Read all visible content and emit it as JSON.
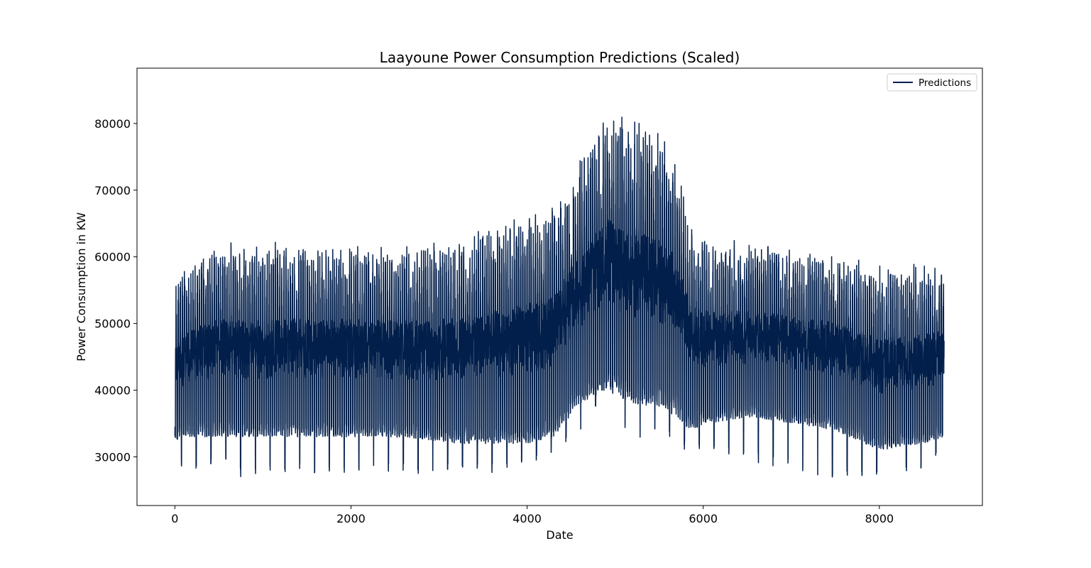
{
  "chart_data": {
    "type": "line",
    "title": "Laayoune Power Consumption Predictions (Scaled)",
    "xlabel": "Date",
    "ylabel": "Power Consumption in KW",
    "xlim": [
      -430,
      9170
    ],
    "ylim": [
      22700,
      88300
    ],
    "xticks": [
      0,
      2000,
      4000,
      6000,
      8000
    ],
    "yticks": [
      30000,
      40000,
      50000,
      60000,
      70000,
      80000
    ],
    "legend_position": "top-right",
    "grid": false,
    "line_color": "#021f4b",
    "series": [
      {
        "name": "Predictions",
        "n_points": 8736,
        "cycle_length": 24,
        "envelope": {
          "x": [
            0,
            200,
            500,
            800,
            1200,
            1600,
            2000,
            2400,
            2800,
            3200,
            3600,
            4000,
            4300,
            4600,
            4900,
            5200,
            5500,
            5700,
            5850,
            6100,
            6500,
            7000,
            7500,
            8000,
            8500,
            8735
          ],
          "high": [
            57000,
            60000,
            63000,
            62000,
            62500,
            62500,
            62500,
            62000,
            62500,
            63500,
            65000,
            67000,
            68000,
            76000,
            83000,
            81000,
            80000,
            76000,
            65000,
            63000,
            62500,
            62000,
            61000,
            59000,
            59500,
            59500
          ],
          "low": [
            32500,
            33000,
            33000,
            33000,
            33000,
            33000,
            33000,
            33000,
            32500,
            32000,
            32000,
            32000,
            33000,
            38000,
            40000,
            38000,
            37500,
            36000,
            34000,
            35000,
            36000,
            35000,
            34000,
            31000,
            32000,
            33000
          ],
          "dip": [
            29000,
            28000,
            29000,
            26500,
            27500,
            27500,
            27500,
            27500,
            27500,
            27500,
            27500,
            29000,
            30000,
            34000,
            38500,
            32000,
            34000,
            31500,
            30500,
            31000,
            29500,
            28000,
            26500,
            27000,
            28000,
            31000
          ]
        }
      }
    ]
  }
}
